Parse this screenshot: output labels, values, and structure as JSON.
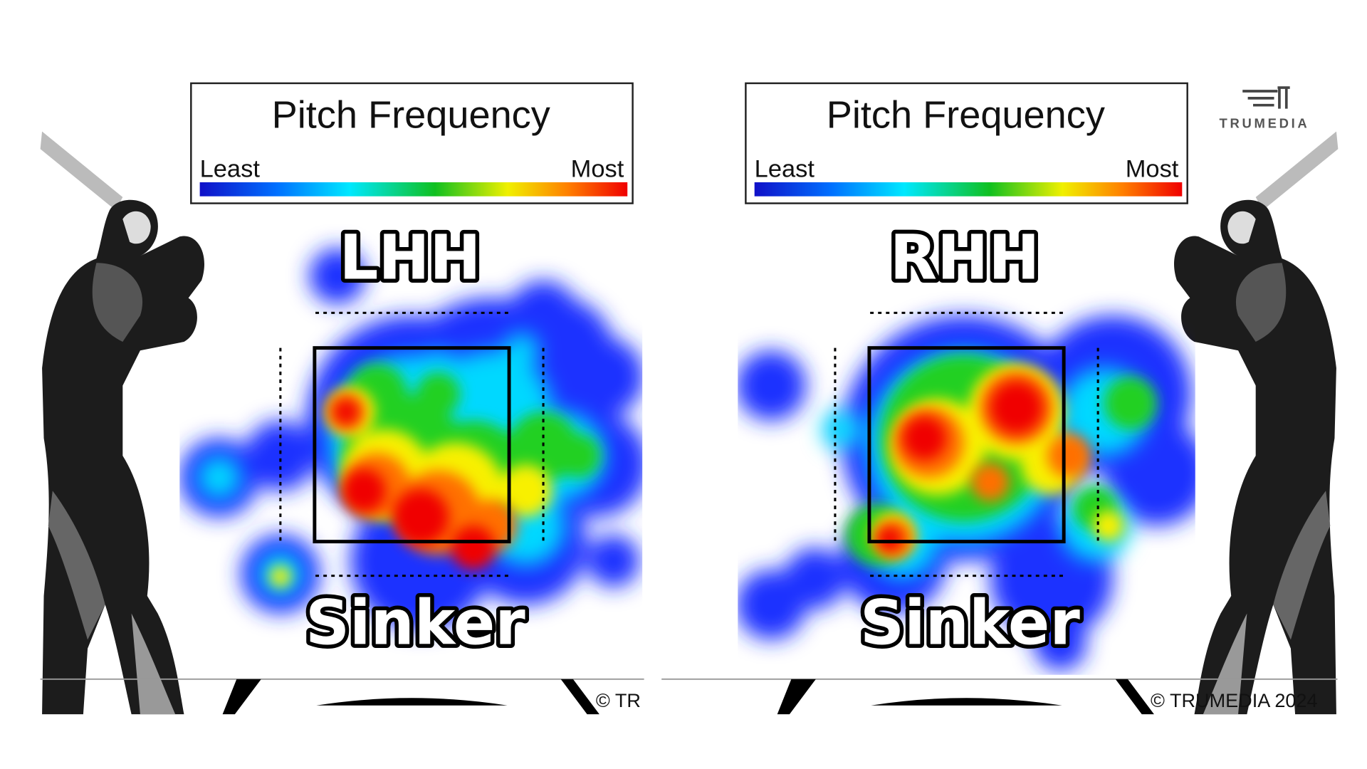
{
  "logo": "TRUMEDIA",
  "panels": [
    {
      "legend": {
        "title": "Pitch Frequency",
        "least": "Least",
        "most": "Most"
      },
      "hand": "LHH",
      "pitch": "Sinker",
      "copyright": "© TR"
    },
    {
      "legend": {
        "title": "Pitch Frequency",
        "least": "Least",
        "most": "Most"
      },
      "hand": "RHH",
      "pitch": "Sinker",
      "copyright": "© TRUMEDIA 2024"
    }
  ]
}
